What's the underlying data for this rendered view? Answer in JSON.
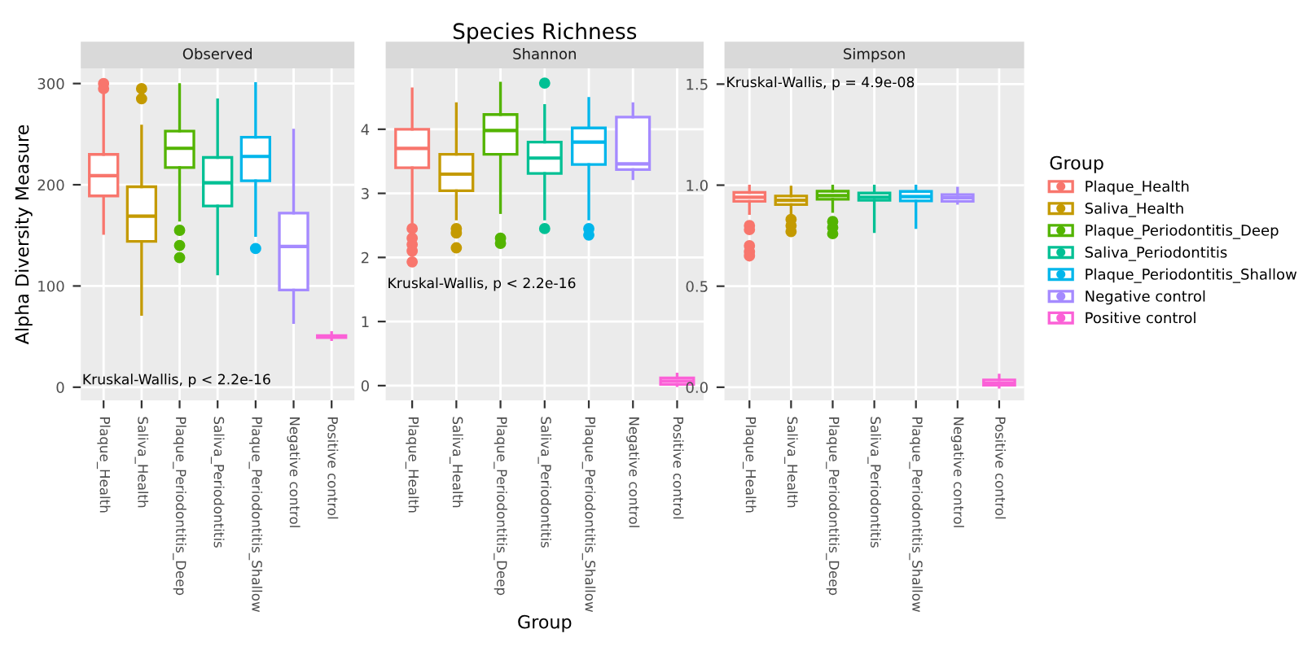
{
  "chart_data": [
    {
      "type": "box",
      "subtitle": "Observed",
      "ylabel": "Alpha Diversity Measure",
      "categories": [
        "Plaque_Health",
        "Saliva_Health",
        "Plaque_Periodontitis_Deep",
        "Saliva_Periodontitis",
        "Plaque_Periodontitis_Shallow",
        "Negative control",
        "Positive control"
      ],
      "series": [
        {
          "color": "#f8766d",
          "boxes": [
            {
              "low": 152,
              "q1": 189,
              "median": 209,
              "q3": 230,
              "high": 291,
              "outliers": [
                295,
                300
              ]
            },
            null,
            null,
            null,
            null,
            null,
            null
          ]
        },
        {
          "color": "#c49a00",
          "boxes": [
            null,
            {
              "low": 72,
              "q1": 144,
              "median": 169,
              "q3": 198,
              "high": 258,
              "outliers": [
                285,
                295
              ]
            },
            null,
            null,
            null,
            null,
            null
          ]
        },
        {
          "color": "#53b400",
          "boxes": [
            null,
            null,
            {
              "low": 165,
              "q1": 217,
              "median": 236,
              "q3": 253,
              "high": 299,
              "outliers": [
                155,
                140,
                128
              ]
            },
            null,
            null,
            null,
            null
          ]
        },
        {
          "color": "#00c094",
          "boxes": [
            null,
            null,
            null,
            {
              "low": 112,
              "q1": 179,
              "median": 202,
              "q3": 227,
              "high": 284
            },
            null,
            null,
            null
          ]
        },
        {
          "color": "#00b6eb",
          "boxes": [
            null,
            null,
            null,
            null,
            {
              "low": 150,
              "q1": 204,
              "median": 228,
              "q3": 247,
              "high": 300,
              "outliers": [
                137
              ]
            },
            null,
            null
          ]
        },
        {
          "color": "#a58aff",
          "boxes": [
            null,
            null,
            null,
            null,
            null,
            {
              "low": 64,
              "q1": 96,
              "median": 139,
              "q3": 172,
              "high": 254
            },
            null
          ]
        },
        {
          "color": "#fb61d7",
          "boxes": [
            null,
            null,
            null,
            null,
            null,
            null,
            {
              "low": 47,
              "q1": 49,
              "median": 50,
              "q3": 51,
              "high": 54
            }
          ]
        }
      ],
      "ylim": [
        -13,
        315
      ],
      "yticks": [
        0,
        100,
        200,
        300
      ],
      "grid": true,
      "annotations": [
        "Kruskal-Wallis, p < 2.2e-16"
      ]
    },
    {
      "type": "box",
      "title": "Species Richness",
      "subtitle": "Shannon",
      "xlabel": "Group",
      "categories": [
        "Plaque_Health",
        "Saliva_Health",
        "Plaque_Periodontitis_Deep",
        "Saliva_Periodontitis",
        "Plaque_Periodontitis_Shallow",
        "Negative control",
        "Positive control"
      ],
      "series": [
        {
          "color": "#f8766d",
          "boxes": [
            {
              "low": 2.55,
              "q1": 3.4,
              "median": 3.7,
              "q3": 4.0,
              "high": 4.63,
              "outliers": [
                2.45,
                2.3,
                2.2,
                2.1,
                1.93
              ]
            },
            null,
            null,
            null,
            null,
            null,
            null
          ]
        },
        {
          "color": "#c49a00",
          "boxes": [
            null,
            {
              "low": 2.6,
              "q1": 3.04,
              "median": 3.3,
              "q3": 3.61,
              "high": 4.4,
              "outliers": [
                2.45,
                2.38,
                2.15
              ]
            },
            null,
            null,
            null,
            null,
            null
          ]
        },
        {
          "color": "#53b400",
          "boxes": [
            null,
            null,
            {
              "low": 2.7,
              "q1": 3.61,
              "median": 3.98,
              "q3": 4.23,
              "high": 4.72,
              "outliers": [
                2.3,
                2.22
              ]
            },
            null,
            null,
            null,
            null
          ]
        },
        {
          "color": "#00c094",
          "boxes": [
            null,
            null,
            null,
            {
              "low": 2.6,
              "q1": 3.31,
              "median": 3.55,
              "q3": 3.8,
              "high": 4.37,
              "outliers": [
                2.45,
                4.72
              ]
            },
            null,
            null,
            null
          ]
        },
        {
          "color": "#00b6eb",
          "boxes": [
            null,
            null,
            null,
            null,
            {
              "low": 2.6,
              "q1": 3.45,
              "median": 3.8,
              "q3": 4.02,
              "high": 4.48,
              "outliers": [
                2.45,
                2.35
              ]
            },
            null,
            null
          ]
        },
        {
          "color": "#a58aff",
          "boxes": [
            null,
            null,
            null,
            null,
            null,
            {
              "low": 3.23,
              "q1": 3.37,
              "median": 3.46,
              "q3": 4.19,
              "high": 4.4
            },
            null
          ]
        },
        {
          "color": "#fb61d7",
          "boxes": [
            null,
            null,
            null,
            null,
            null,
            null,
            {
              "low": 0.0,
              "q1": 0.02,
              "median": 0.07,
              "q3": 0.12,
              "high": 0.18
            }
          ]
        }
      ],
      "ylim": [
        -0.23,
        4.95
      ],
      "yticks": [
        0,
        1,
        2,
        3,
        4
      ],
      "grid": true,
      "annotations": [
        "Kruskal-Wallis, p < 2.2e-16"
      ]
    },
    {
      "type": "box",
      "subtitle": "Simpson",
      "legend_title": "Group",
      "legend": "right",
      "categories": [
        "Plaque_Health",
        "Saliva_Health",
        "Plaque_Periodontitis_Deep",
        "Saliva_Periodontitis",
        "Plaque_Periodontitis_Shallow",
        "Negative control",
        "Positive control"
      ],
      "series": [
        {
          "name": "Plaque_Health",
          "color": "#f8766d",
          "boxes": [
            {
              "low": 0.86,
              "q1": 0.92,
              "median": 0.94,
              "q3": 0.964,
              "high": 0.995,
              "outliers": [
                0.8,
                0.78,
                0.7,
                0.67,
                0.65
              ]
            },
            null,
            null,
            null,
            null,
            null,
            null
          ]
        },
        {
          "name": "Saliva_Health",
          "color": "#c49a00",
          "boxes": [
            null,
            {
              "low": 0.86,
              "q1": 0.904,
              "median": 0.925,
              "q3": 0.946,
              "high": 0.99,
              "outliers": [
                0.83,
                0.8,
                0.77
              ]
            },
            null,
            null,
            null,
            null,
            null
          ]
        },
        {
          "name": "Plaque_Periodontitis_Deep",
          "color": "#53b400",
          "boxes": [
            null,
            null,
            {
              "low": 0.87,
              "q1": 0.93,
              "median": 0.948,
              "q3": 0.97,
              "high": 0.995,
              "outliers": [
                0.82,
                0.79,
                0.76
              ]
            },
            null,
            null,
            null,
            null
          ]
        },
        {
          "name": "Saliva_Periodontitis",
          "color": "#00c094",
          "boxes": [
            null,
            null,
            null,
            {
              "low": 0.77,
              "q1": 0.925,
              "median": 0.94,
              "q3": 0.961,
              "high": 0.995
            },
            null,
            null,
            null
          ]
        },
        {
          "name": "Plaque_Periodontitis_Shallow",
          "color": "#00b6eb",
          "boxes": [
            null,
            null,
            null,
            null,
            {
              "low": 0.79,
              "q1": 0.922,
              "median": 0.943,
              "q3": 0.969,
              "high": 0.995
            },
            null,
            null
          ]
        },
        {
          "name": "Negative control",
          "color": "#a58aff",
          "boxes": [
            null,
            null,
            null,
            null,
            null,
            {
              "low": 0.91,
              "q1": 0.92,
              "median": 0.938,
              "q3": 0.953,
              "high": 0.985
            },
            null
          ]
        },
        {
          "name": "Positive control",
          "color": "#fb61d7",
          "boxes": [
            null,
            null,
            null,
            null,
            null,
            null,
            {
              "low": 0.0,
              "q1": 0.01,
              "median": 0.02,
              "q3": 0.036,
              "high": 0.06
            }
          ]
        }
      ],
      "ylim": [
        -0.065,
        1.578
      ],
      "yticks": [
        {
          "value": 0,
          "label": "0.0"
        },
        {
          "value": 0.5,
          "label": "0.5"
        },
        {
          "value": 1,
          "label": "1.0"
        },
        {
          "value": 1.5,
          "label": "1.5"
        }
      ],
      "grid": true,
      "annotations": [
        "Kruskal-Wallis, p = 4.9e-08"
      ]
    }
  ]
}
